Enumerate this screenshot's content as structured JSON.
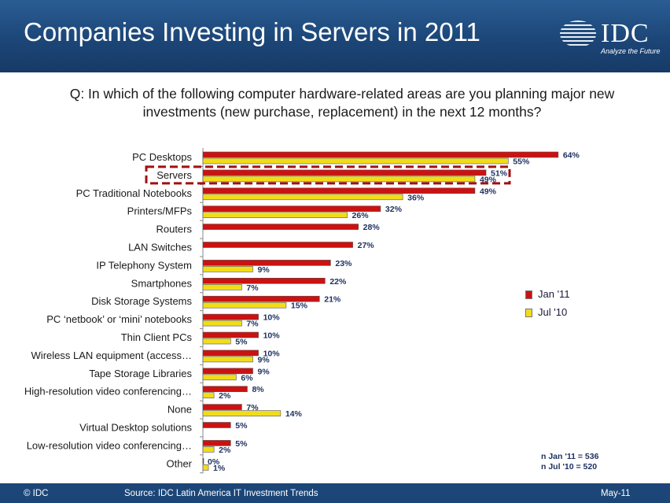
{
  "header": {
    "title": "Companies Investing in Servers in 2011",
    "logo_text": "IDC",
    "logo_tagline": "Analyze the Future",
    "background": "#1c4678"
  },
  "question": "Q: In which of the following computer hardware-related areas are you planning major new investments (new purchase, replacement) in the next 12 months?",
  "legend": {
    "series1": "Jan '11",
    "series2": "Jul '10"
  },
  "notes": {
    "n1": "n Jan '11 = 536",
    "n2": "n Jul '10 = 520"
  },
  "footer": {
    "copyright": "© IDC",
    "source": "Source: IDC Latin America IT Investment Trends",
    "date": "May-11"
  },
  "chart_data": {
    "type": "bar",
    "orientation": "horizontal",
    "categories": [
      "PC Desktops",
      "Servers",
      "PC Traditional Notebooks",
      "Printers/MFPs",
      "Routers",
      "LAN Switches",
      "IP Telephony System",
      "Smartphones",
      "Disk Storage Systems",
      "PC ‘netbook’ or ‘mini’ notebooks",
      "Thin Client PCs",
      "Wireless LAN equipment (access…",
      "Tape Storage Libraries",
      "High-resolution video conferencing…",
      "None",
      "Virtual Desktop solutions",
      "Low-resolution video conferencing…",
      "Other"
    ],
    "series": [
      {
        "name": "Jan '11",
        "color": "#cc1111",
        "values": [
          64,
          51,
          49,
          32,
          28,
          27,
          23,
          22,
          21,
          10,
          10,
          10,
          9,
          8,
          7,
          5,
          5,
          0
        ]
      },
      {
        "name": "Jul '10",
        "color": "#f2dc1a",
        "values": [
          55,
          49,
          36,
          26,
          null,
          null,
          9,
          7,
          15,
          7,
          5,
          9,
          6,
          2,
          14,
          null,
          2,
          1
        ]
      }
    ],
    "value_suffix": "%",
    "highlighted_category": "Servers",
    "xlim": [
      0,
      100
    ],
    "legend_position": "right",
    "grid": false
  }
}
